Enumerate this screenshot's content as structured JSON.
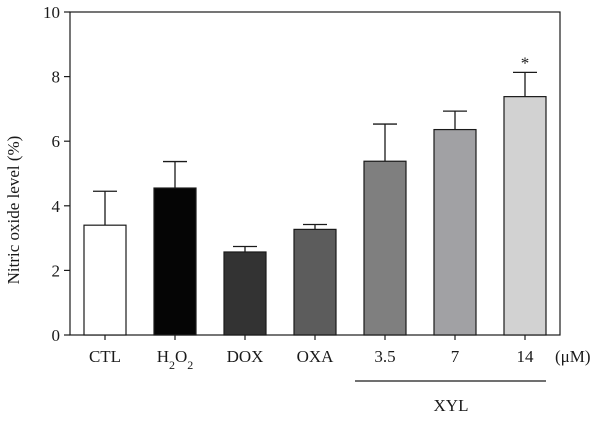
{
  "chart_data": {
    "type": "bar",
    "ylabel": "Nitric oxide level (%)",
    "ylim": [
      0,
      10
    ],
    "yticks": [
      0,
      2,
      4,
      6,
      8,
      10
    ],
    "grid": false,
    "unit_label": "(μM)",
    "group_label": "XYL",
    "categories": [
      {
        "label": "CTL",
        "value": 3.4,
        "error": 1.05,
        "color": "#ffffff",
        "sig": ""
      },
      {
        "label": "H2O2",
        "value": 4.55,
        "error": 0.82,
        "color": "#050505",
        "sig": ""
      },
      {
        "label": "DOX",
        "value": 2.57,
        "error": 0.17,
        "color": "#333333",
        "sig": ""
      },
      {
        "label": "OXA",
        "value": 3.27,
        "error": 0.15,
        "color": "#5c5c5c",
        "sig": ""
      },
      {
        "label": "3.5",
        "value": 5.38,
        "error": 1.15,
        "color": "#7f7f7f",
        "sig": ""
      },
      {
        "label": "7",
        "value": 6.36,
        "error": 0.57,
        "color": "#a1a1a4",
        "sig": ""
      },
      {
        "label": "14",
        "value": 7.38,
        "error": 0.75,
        "color": "#d2d2d2",
        "sig": "*"
      }
    ]
  }
}
